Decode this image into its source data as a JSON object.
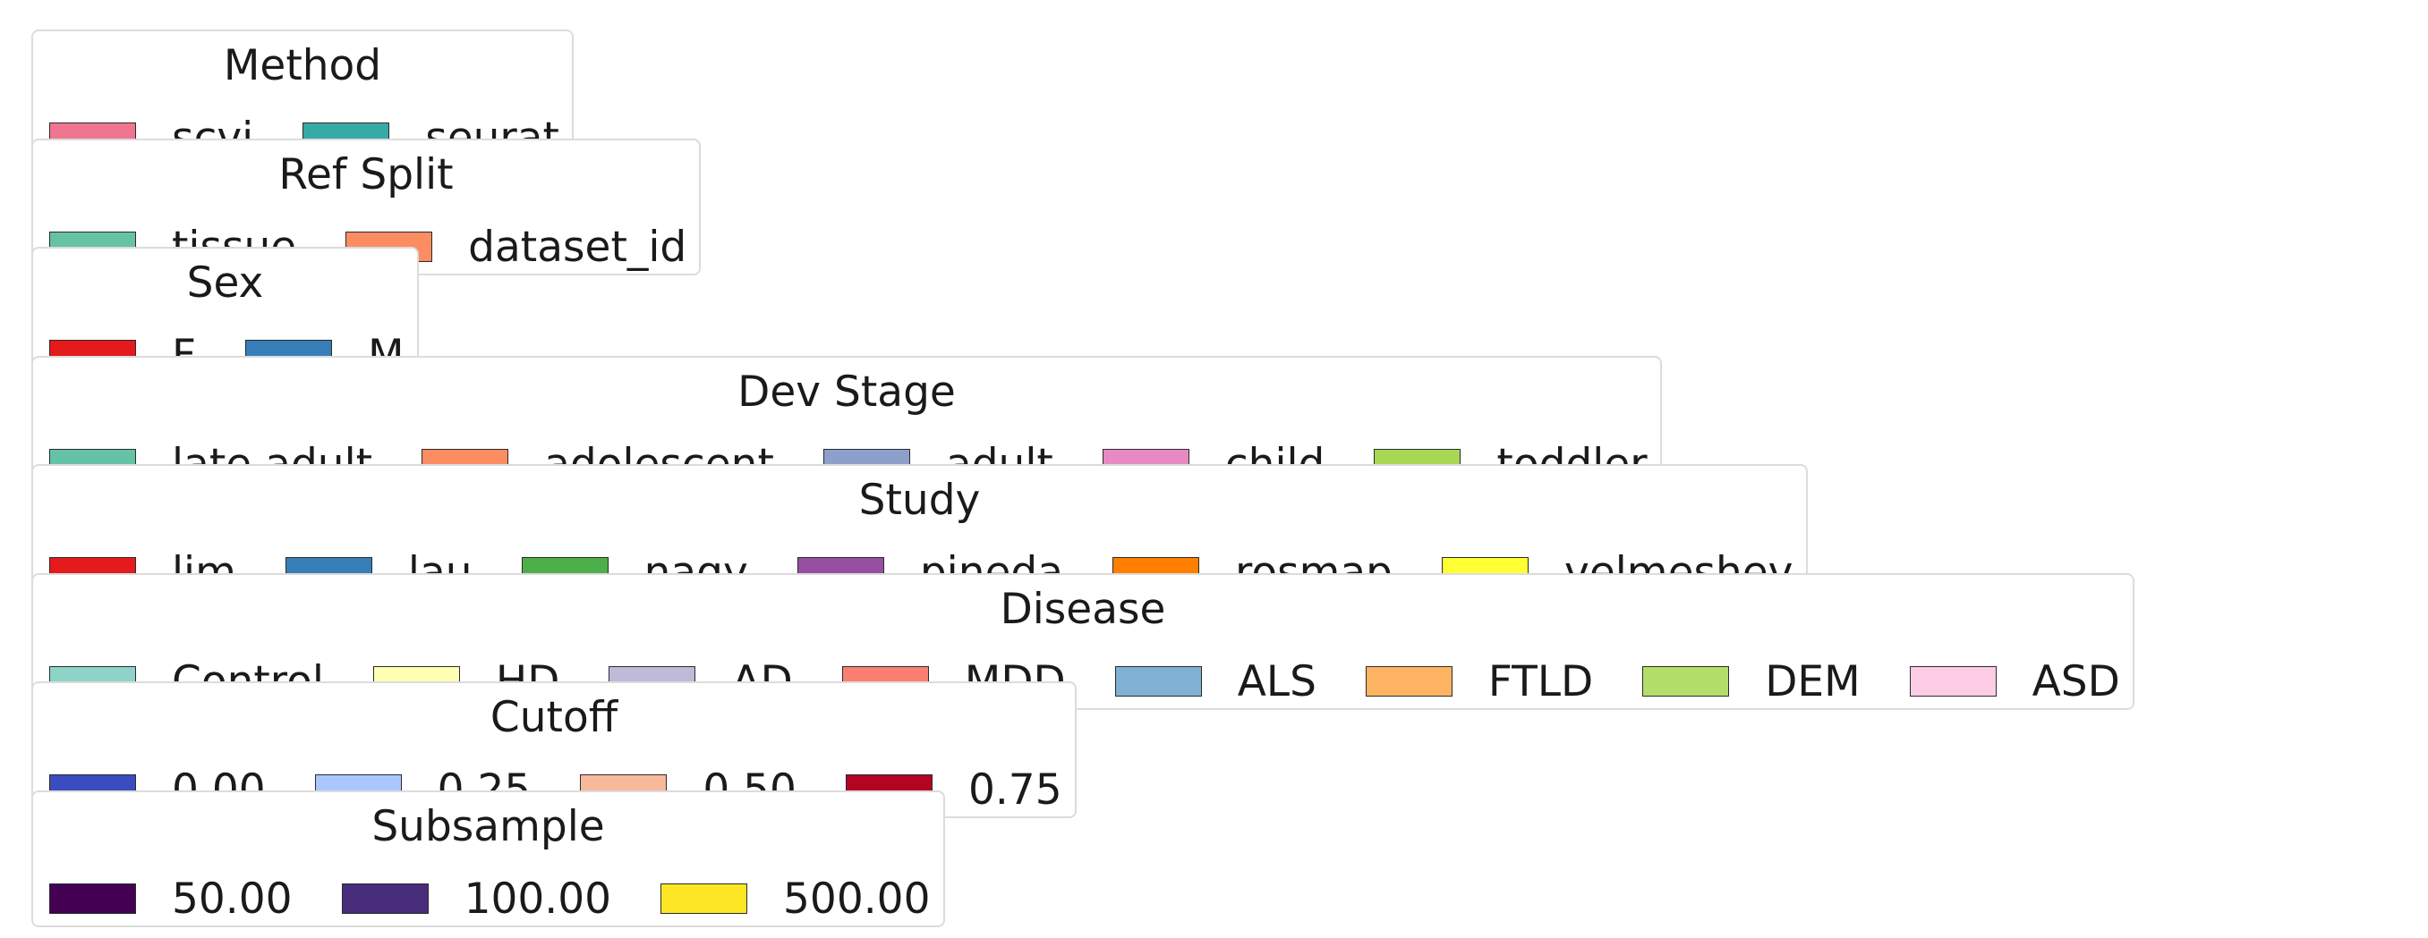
{
  "chart_data": {
    "type": "legend",
    "legends": [
      {
        "title": "Method",
        "entries": [
          {
            "label": "scvi",
            "color": "#f07590"
          },
          {
            "label": "seurat",
            "color": "#36aaa6"
          }
        ]
      },
      {
        "title": "Ref Split",
        "entries": [
          {
            "label": "tissue",
            "color": "#66c2a5"
          },
          {
            "label": "dataset_id",
            "color": "#fc8d62"
          }
        ]
      },
      {
        "title": "Sex",
        "entries": [
          {
            "label": "F",
            "color": "#e41a1c"
          },
          {
            "label": "M",
            "color": "#377eb8"
          }
        ]
      },
      {
        "title": "Dev Stage",
        "entries": [
          {
            "label": "late adult",
            "color": "#66c2a5"
          },
          {
            "label": "adolescent",
            "color": "#fc8d62"
          },
          {
            "label": "adult",
            "color": "#8da0cb"
          },
          {
            "label": "child",
            "color": "#e78ac3"
          },
          {
            "label": "toddler",
            "color": "#a6d854"
          }
        ]
      },
      {
        "title": "Study",
        "entries": [
          {
            "label": "lim",
            "color": "#e41a1c"
          },
          {
            "label": "lau",
            "color": "#377eb8"
          },
          {
            "label": "nagy",
            "color": "#4daf4a"
          },
          {
            "label": "pineda",
            "color": "#984ea3"
          },
          {
            "label": "rosmap",
            "color": "#ff7f00"
          },
          {
            "label": "velmeshev",
            "color": "#ffff33"
          }
        ]
      },
      {
        "title": "Disease",
        "entries": [
          {
            "label": "Control",
            "color": "#8dd3c7"
          },
          {
            "label": "HD",
            "color": "#ffffb3"
          },
          {
            "label": "AD",
            "color": "#bebada"
          },
          {
            "label": "MDD",
            "color": "#fb8072"
          },
          {
            "label": "ALS",
            "color": "#80b1d3"
          },
          {
            "label": "FTLD",
            "color": "#fdb462"
          },
          {
            "label": "DEM",
            "color": "#b3de69"
          },
          {
            "label": "ASD",
            "color": "#fccde5"
          }
        ]
      },
      {
        "title": "Cutoff",
        "entries": [
          {
            "label": "0.00",
            "color": "#3b4cc0"
          },
          {
            "label": "0.25",
            "color": "#aac7fd"
          },
          {
            "label": "0.50",
            "color": "#f7b89c"
          },
          {
            "label": "0.75",
            "color": "#b40426"
          }
        ]
      },
      {
        "title": "Subsample",
        "entries": [
          {
            "label": "50.00",
            "color": "#440154"
          },
          {
            "label": "100.00",
            "color": "#472d7b"
          },
          {
            "label": "500.00",
            "color": "#fde725"
          }
        ]
      }
    ]
  }
}
